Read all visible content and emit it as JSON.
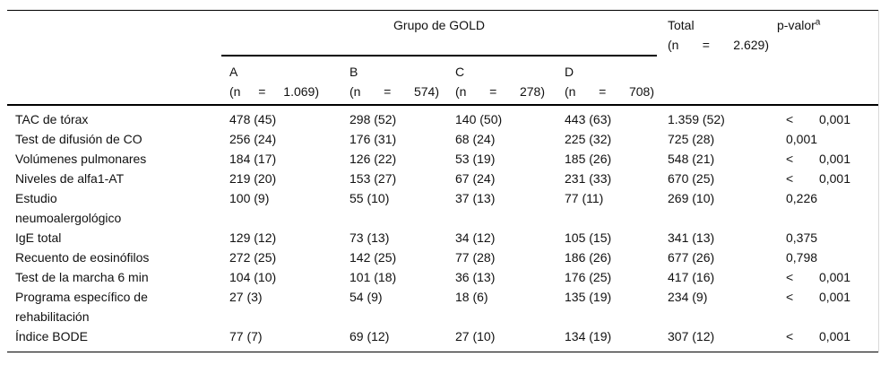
{
  "colors": {
    "background": "#ffffff",
    "text": "#111111",
    "rule_line": "#000000",
    "scan_edge_line": "#d9d9d9"
  },
  "table": {
    "header": {
      "group_spanner": "Grupo de GOLD",
      "total_label": "Total",
      "total_n": "(n = 2.629)",
      "pvalue_label": "p-valor",
      "pvalue_superscript": "a",
      "groups": [
        {
          "name": "A",
          "n": "(n = 1.069)"
        },
        {
          "name": "B",
          "n": "(n = 574)"
        },
        {
          "name": "C",
          "n": "(n = 278)"
        },
        {
          "name": "D",
          "n": "(n = 708)"
        }
      ]
    },
    "rows": [
      {
        "label": "TAC de tórax",
        "a": "478 (45)",
        "b": "298 (52)",
        "c": "140 (50)",
        "d": "443 (63)",
        "total": "1.359 (52)",
        "p": "< 0,001"
      },
      {
        "label": "Test de difusión de CO",
        "a": "256 (24)",
        "b": "176 (31)",
        "c": "68 (24)",
        "d": "225 (32)",
        "total": "725 (28)",
        "p": "0,001"
      },
      {
        "label": "Volúmenes pulmonares",
        "a": "184 (17)",
        "b": "126 (22)",
        "c": "53 (19)",
        "d": "185 (26)",
        "total": "548 (21)",
        "p": "< 0,001"
      },
      {
        "label": "Niveles de alfa1-AT",
        "a": "219 (20)",
        "b": "153 (27)",
        "c": "67 (24)",
        "d": "231 (33)",
        "total": "670 (25)",
        "p": "< 0,001"
      },
      {
        "label": "Estudio\nneumoalergológico",
        "a": "100 (9)",
        "b": "55 (10)",
        "c": "37 (13)",
        "d": "77 (11)",
        "total": "269 (10)",
        "p": "0,226"
      },
      {
        "label": "IgE total",
        "a": "129 (12)",
        "b": "73 (13)",
        "c": "34 (12)",
        "d": "105 (15)",
        "total": "341 (13)",
        "p": "0,375"
      },
      {
        "label": "Recuento de eosinófilos",
        "a": "272 (25)",
        "b": "142 (25)",
        "c": "77 (28)",
        "d": "186 (26)",
        "total": "677 (26)",
        "p": "0,798"
      },
      {
        "label": "Test de la marcha 6 min",
        "a": "104 (10)",
        "b": "101 (18)",
        "c": "36 (13)",
        "d": "176 (25)",
        "total": "417 (16)",
        "p": "< 0,001"
      },
      {
        "label": "Programa específico de\nrehabilitación",
        "a": "27 (3)",
        "b": "54 (9)",
        "c": "18 (6)",
        "d": "135 (19)",
        "total": "234 (9)",
        "p": "< 0,001"
      },
      {
        "label": "Índice BODE",
        "a": "77 (7)",
        "b": "69 (12)",
        "c": "27 (10)",
        "d": "134 (19)",
        "total": "307 (12)",
        "p": "< 0,001"
      }
    ]
  }
}
